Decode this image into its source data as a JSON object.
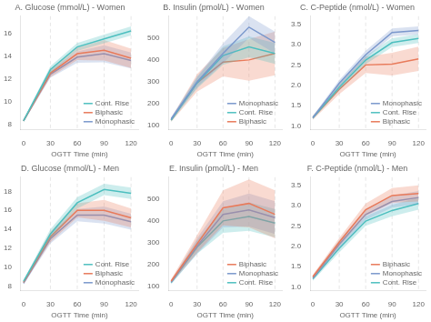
{
  "chart_data": [
    {
      "type": "line",
      "title": "A. Glucose (mmol/L) - Women",
      "x_label": "OGTT Time (min)",
      "x": [
        0,
        30,
        60,
        90,
        120
      ],
      "xlim": [
        -3,
        128
      ],
      "xticks": [
        0,
        30,
        60,
        90,
        120
      ],
      "ylim": [
        7.5,
        17.5
      ],
      "yticks": [
        8,
        10,
        12,
        14,
        16
      ],
      "grid": false,
      "legend": "lower right",
      "vlines": [
        30,
        60,
        90,
        120
      ],
      "series": [
        {
          "name": "Cont. Rise",
          "color": "#4dbfbf",
          "values": [
            8.3,
            12.8,
            14.8,
            15.5,
            16.2
          ],
          "se": [
            0.12,
            0.3,
            0.35,
            0.38,
            0.4
          ]
        },
        {
          "name": "Biphasic",
          "color": "#e87a5a",
          "values": [
            8.3,
            12.5,
            14.2,
            14.5,
            13.8
          ],
          "se": [
            0.12,
            0.35,
            0.55,
            0.9,
            0.85
          ]
        },
        {
          "name": "Monophasic",
          "color": "#7a98cc",
          "values": [
            8.3,
            12.4,
            13.9,
            14.2,
            13.6
          ],
          "se": [
            0.12,
            0.32,
            0.5,
            0.75,
            0.7
          ]
        }
      ]
    },
    {
      "type": "line",
      "title": "B. Insulin (pmol/L) - Women",
      "x_label": "OGTT Time (min)",
      "x": [
        0,
        30,
        60,
        90,
        120
      ],
      "xlim": [
        -3,
        128
      ],
      "xticks": [
        0,
        30,
        60,
        90,
        120
      ],
      "ylim": [
        80,
        600
      ],
      "yticks": [
        100,
        200,
        300,
        400,
        500
      ],
      "grid": false,
      "legend": "lower right",
      "vlines": [
        30,
        60,
        90,
        120
      ],
      "series": [
        {
          "name": "Monophasic",
          "color": "#7a98cc",
          "values": [
            130,
            300,
            430,
            550,
            480
          ],
          "se": [
            8,
            25,
            45,
            50,
            50
          ]
        },
        {
          "name": "Cont. Rise",
          "color": "#4dbfbf",
          "values": [
            125,
            295,
            420,
            460,
            430
          ],
          "se": [
            8,
            25,
            42,
            48,
            48
          ]
        },
        {
          "name": "Biphasic",
          "color": "#e87a5a",
          "values": [
            125,
            295,
            390,
            400,
            430
          ],
          "se": [
            8,
            40,
            65,
            95,
            100
          ]
        }
      ]
    },
    {
      "type": "line",
      "title": "C. C-Peptide (nmol/L) - Women",
      "x_label": "OGTT Time (min)",
      "x": [
        0,
        30,
        60,
        90,
        120
      ],
      "xlim": [
        -3,
        128
      ],
      "xticks": [
        0,
        30,
        60,
        90,
        120
      ],
      "ylim": [
        0.9,
        3.7
      ],
      "yticks": [
        {
          "value": 1.0,
          "label": "1.0"
        },
        1.5,
        {
          "value": 2.0,
          "label": "2.0"
        },
        2.5,
        {
          "value": 3.0,
          "label": "3.0"
        },
        3.5
      ],
      "grid": false,
      "legend": "lower right",
      "vlines": [
        30,
        60,
        90,
        120
      ],
      "series": [
        {
          "name": "Monophasic",
          "color": "#7a98cc",
          "values": [
            1.2,
            2.05,
            2.75,
            3.3,
            3.35
          ],
          "se": [
            0.04,
            0.08,
            0.1,
            0.1,
            0.1
          ]
        },
        {
          "name": "Cont. Rise",
          "color": "#4dbfbf",
          "values": [
            1.2,
            1.95,
            2.62,
            3.05,
            3.15
          ],
          "se": [
            0.04,
            0.08,
            0.1,
            0.11,
            0.11
          ]
        },
        {
          "name": "Biphasic",
          "color": "#e87a5a",
          "values": [
            1.2,
            1.9,
            2.5,
            2.52,
            2.65
          ],
          "se": [
            0.05,
            0.12,
            0.2,
            0.28,
            0.3
          ]
        }
      ]
    },
    {
      "type": "line",
      "title": "D. Glucose (mmol/L) - Men",
      "x_label": "OGTT Time (min)",
      "x": [
        0,
        30,
        60,
        90,
        120
      ],
      "xlim": [
        -3,
        128
      ],
      "xticks": [
        0,
        30,
        60,
        90,
        120
      ],
      "ylim": [
        7.5,
        19.5
      ],
      "yticks": [
        8,
        10,
        12,
        14,
        16,
        18
      ],
      "grid": false,
      "legend": "lower right",
      "vlines": [
        30,
        60,
        90,
        120
      ],
      "series": [
        {
          "name": "Cont. Rise",
          "color": "#4dbfbf",
          "values": [
            8.5,
            13.5,
            16.8,
            18.2,
            17.8
          ],
          "se": [
            0.15,
            0.5,
            0.6,
            0.6,
            0.6
          ]
        },
        {
          "name": "Biphasic",
          "color": "#e87a5a",
          "values": [
            8.4,
            13.2,
            16.0,
            16.0,
            15.2
          ],
          "se": [
            0.15,
            0.55,
            0.75,
            1.1,
            1.0
          ]
        },
        {
          "name": "Monophasic",
          "color": "#7a98cc",
          "values": [
            8.3,
            13.0,
            15.5,
            15.5,
            14.8
          ],
          "se": [
            0.15,
            0.5,
            0.65,
            0.9,
            0.85
          ]
        }
      ]
    },
    {
      "type": "line",
      "title": "E. Insulin (pmol/L) - Men",
      "x_label": "OGTT Time (min)",
      "x": [
        0,
        30,
        60,
        90,
        120
      ],
      "xlim": [
        -3,
        128
      ],
      "xticks": [
        0,
        30,
        60,
        90,
        120
      ],
      "ylim": [
        80,
        600
      ],
      "yticks": [
        100,
        200,
        300,
        400,
        500
      ],
      "grid": false,
      "legend": "lower right",
      "vlines": [
        30,
        60,
        90,
        120
      ],
      "series": [
        {
          "name": "Biphasic",
          "color": "#e87a5a",
          "values": [
            125,
            295,
            460,
            480,
            430
          ],
          "se": [
            8,
            40,
            80,
            110,
            110
          ]
        },
        {
          "name": "Monophasic",
          "color": "#7a98cc",
          "values": [
            120,
            285,
            430,
            450,
            415
          ],
          "se": [
            8,
            35,
            60,
            75,
            75
          ]
        },
        {
          "name": "Cont. Rise",
          "color": "#4dbfbf",
          "values": [
            118,
            280,
            400,
            420,
            390
          ],
          "se": [
            8,
            30,
            55,
            65,
            65
          ]
        }
      ]
    },
    {
      "type": "line",
      "title": "F. C-Peptide (nmol/L) - Men",
      "x_label": "OGTT Time (min)",
      "x": [
        0,
        30,
        60,
        90,
        120
      ],
      "xlim": [
        -3,
        128
      ],
      "xticks": [
        0,
        30,
        60,
        90,
        120
      ],
      "ylim": [
        0.9,
        3.7
      ],
      "yticks": [
        {
          "value": 1.0,
          "label": "1.0"
        },
        1.5,
        {
          "value": 2.0,
          "label": "2.0"
        },
        2.5,
        {
          "value": 3.0,
          "label": "3.0"
        },
        3.5
      ],
      "grid": false,
      "legend": "lower right",
      "vlines": [
        30,
        60,
        90,
        120
      ],
      "series": [
        {
          "name": "Biphasic",
          "color": "#e87a5a",
          "values": [
            1.25,
            2.1,
            2.9,
            3.25,
            3.3
          ],
          "se": [
            0.05,
            0.1,
            0.15,
            0.18,
            0.2
          ]
        },
        {
          "name": "Monophasic",
          "color": "#7a98cc",
          "values": [
            1.22,
            2.05,
            2.78,
            3.1,
            3.2
          ],
          "se": [
            0.05,
            0.1,
            0.13,
            0.15,
            0.16
          ]
        },
        {
          "name": "Cont. Rise",
          "color": "#4dbfbf",
          "values": [
            1.2,
            1.95,
            2.62,
            2.88,
            3.05
          ],
          "se": [
            0.05,
            0.1,
            0.12,
            0.14,
            0.15
          ]
        }
      ]
    }
  ]
}
